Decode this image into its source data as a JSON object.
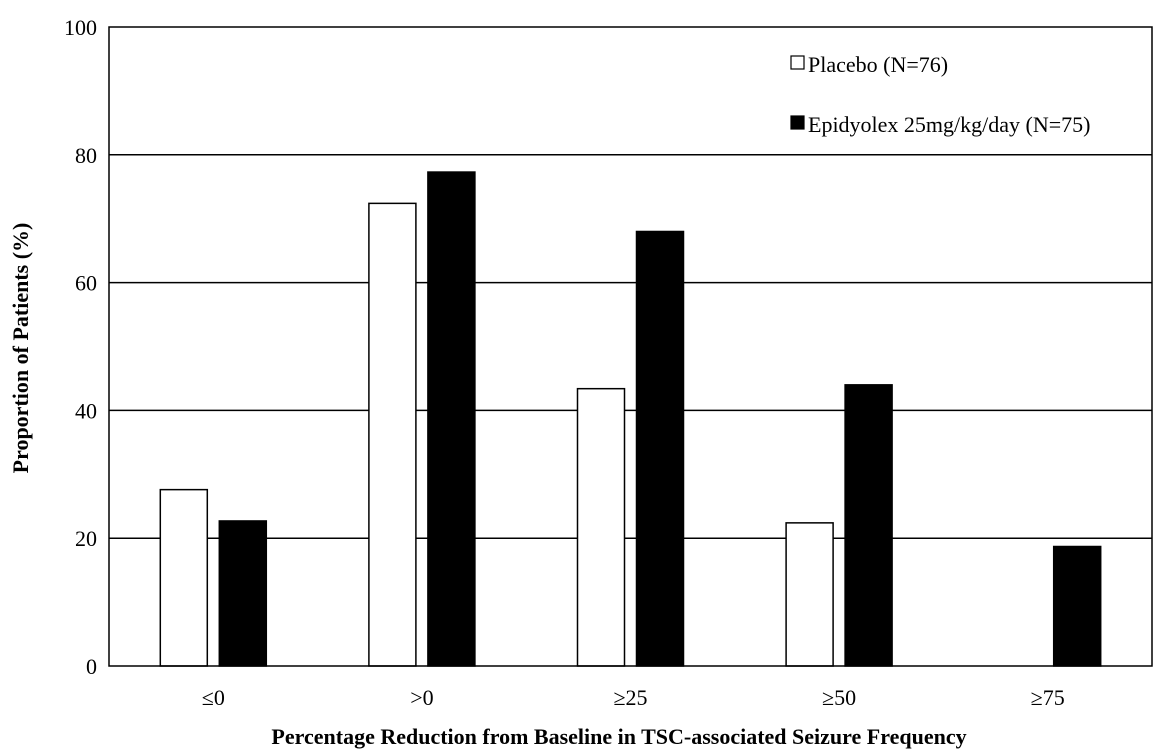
{
  "chart_data": {
    "type": "bar",
    "title": "",
    "xlabel": "Percentage Reduction from Baseline in TSC-associated Seizure Frequency",
    "ylabel": "Proportion of Patients (%)",
    "ylim": [
      0,
      100
    ],
    "yticks": [
      0,
      20,
      40,
      60,
      80,
      100
    ],
    "categories": [
      "≤0",
      ">0",
      "≥25",
      "≥50",
      "≥75"
    ],
    "series": [
      {
        "name": "Placebo (N=76)",
        "values": [
          27.6,
          72.4,
          43.4,
          22.4,
          0
        ],
        "color": "#ffffff"
      },
      {
        "name": "Epidyolex 25mg/kg/day (N=75)",
        "values": [
          22.7,
          77.3,
          68.0,
          44.0,
          18.7
        ],
        "color": "#000000"
      }
    ],
    "grid": true,
    "legend_position": "top-right"
  }
}
